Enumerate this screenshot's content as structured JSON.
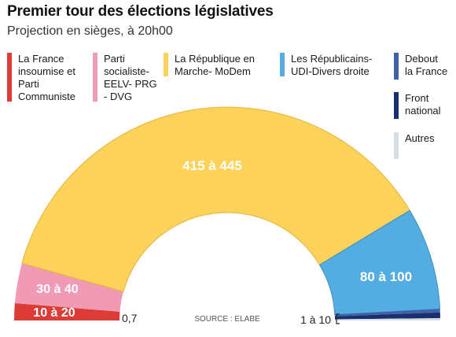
{
  "header": {
    "title": "Premier tour des élections législatives",
    "subtitle": "Projection en sièges, à 20h00"
  },
  "legend": [
    {
      "label": "La France insoumise et Parti Communiste",
      "lines": [
        "La France",
        "insoumise et",
        "Parti",
        "Communiste"
      ],
      "color": "#dd3b36"
    },
    {
      "label": "Parti socialiste-EELV- PRG - DVG",
      "lines": [
        "Parti",
        "socialiste-",
        "EELV- PRG",
        "- DVG"
      ],
      "color": "#f09ab6"
    },
    {
      "label": "La République en Marche- MoDem",
      "lines": [
        "La République en",
        "Marche- MoDem"
      ],
      "color": "#fcd25a"
    },
    {
      "label": "Les Républicains-UDI-Divers droite",
      "lines": [
        "Les Républicains-",
        "UDI-Divers droite"
      ],
      "color": "#54ade0"
    },
    {
      "label": "Debout la France",
      "lines": [
        "Debout",
        "la France"
      ],
      "color": "#4061a8"
    },
    {
      "label": "Front national",
      "lines": [
        "Front",
        "national"
      ],
      "color": "#1a2f6e"
    },
    {
      "label": "Autres",
      "lines": [
        "Autres"
      ],
      "color": "#d6dde3"
    }
  ],
  "chart_data": {
    "type": "pie",
    "title": "Premier tour des élections législatives",
    "subtitle": "Projection en sièges, à 20h00",
    "source": "SOURCE : ELABE",
    "categories": [
      "La France insoumise et Parti Communiste",
      "Parti socialiste-EELV- PRG - DVG",
      "La République en Marche- MoDem",
      "Les Républicains-UDI-Divers droite",
      "Debout la France",
      "Front national",
      "Autres"
    ],
    "value_labels": [
      "10 à 20",
      "30 à 40",
      "415 à 445",
      "80 à 100",
      "0,7",
      "1 à 10",
      ""
    ],
    "ranges": [
      [
        10,
        20
      ],
      [
        30,
        40
      ],
      [
        415,
        445
      ],
      [
        80,
        100
      ],
      [
        0,
        7
      ],
      [
        1,
        10
      ],
      [
        null,
        null
      ]
    ],
    "values": [
      15,
      35,
      430,
      90,
      3,
      5,
      2
    ],
    "colors": [
      "#dd3b36",
      "#f09ab6",
      "#fcd25a",
      "#54ade0",
      "#4061a8",
      "#1a2f6e",
      "#d6dde3"
    ]
  }
}
